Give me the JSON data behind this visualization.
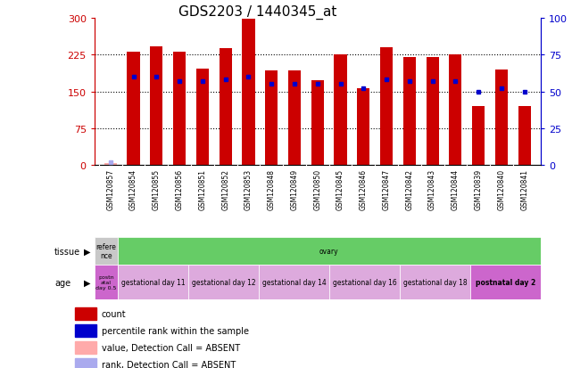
{
  "title": "GDS2203 / 1440345_at",
  "samples": [
    "GSM120857",
    "GSM120854",
    "GSM120855",
    "GSM120856",
    "GSM120851",
    "GSM120852",
    "GSM120853",
    "GSM120848",
    "GSM120849",
    "GSM120850",
    "GSM120845",
    "GSM120846",
    "GSM120847",
    "GSM120842",
    "GSM120843",
    "GSM120844",
    "GSM120839",
    "GSM120840",
    "GSM120841"
  ],
  "count_values": [
    5,
    230,
    242,
    230,
    197,
    238,
    297,
    193,
    193,
    172,
    225,
    157,
    240,
    220,
    220,
    225,
    120,
    195,
    120
  ],
  "percentile_values": [
    2,
    60,
    60,
    57,
    57,
    58,
    60,
    55,
    55,
    55,
    55,
    52,
    58,
    57,
    57,
    57,
    50,
    52,
    50
  ],
  "count_absent": [
    true,
    false,
    false,
    false,
    false,
    false,
    false,
    false,
    false,
    false,
    false,
    false,
    false,
    false,
    false,
    false,
    false,
    false,
    false
  ],
  "rank_absent": [
    true,
    false,
    false,
    false,
    false,
    false,
    false,
    false,
    false,
    false,
    false,
    false,
    false,
    false,
    false,
    false,
    false,
    false,
    false
  ],
  "ylim_left": [
    0,
    300
  ],
  "ylim_right": [
    0,
    100
  ],
  "yticks_left": [
    0,
    75,
    150,
    225,
    300
  ],
  "yticks_right": [
    0,
    25,
    50,
    75,
    100
  ],
  "bar_color": "#cc0000",
  "bar_absent_color": "#ffaaaa",
  "dot_color": "#0000cc",
  "dot_absent_color": "#aaaaee",
  "title_fontsize": 11,
  "axis_color_left": "#cc0000",
  "axis_color_right": "#0000cc",
  "tissue_row": [
    {
      "label": "refere\nnce",
      "color": "#c8c8c8",
      "span": 1
    },
    {
      "label": "ovary",
      "color": "#66cc66",
      "span": 18
    }
  ],
  "age_row": [
    {
      "label": "postn\natal\nday 0.5",
      "color": "#cc66cc",
      "span": 1
    },
    {
      "label": "gestational day 11",
      "color": "#ddaadd",
      "span": 3
    },
    {
      "label": "gestational day 12",
      "color": "#ddaadd",
      "span": 3
    },
    {
      "label": "gestational day 14",
      "color": "#ddaadd",
      "span": 3
    },
    {
      "label": "gestational day 16",
      "color": "#ddaadd",
      "span": 3
    },
    {
      "label": "gestational day 18",
      "color": "#ddaadd",
      "span": 3
    },
    {
      "label": "postnatal day 2",
      "color": "#cc66cc",
      "span": 3
    }
  ],
  "legend_items": [
    {
      "color": "#cc0000",
      "label": "count"
    },
    {
      "color": "#0000cc",
      "label": "percentile rank within the sample"
    },
    {
      "color": "#ffaaaa",
      "label": "value, Detection Call = ABSENT"
    },
    {
      "color": "#aaaaee",
      "label": "rank, Detection Call = ABSENT"
    }
  ],
  "fig_bg": "#ffffff",
  "plot_bg": "#ffffff",
  "label_area_bg": "#c8c8c8"
}
